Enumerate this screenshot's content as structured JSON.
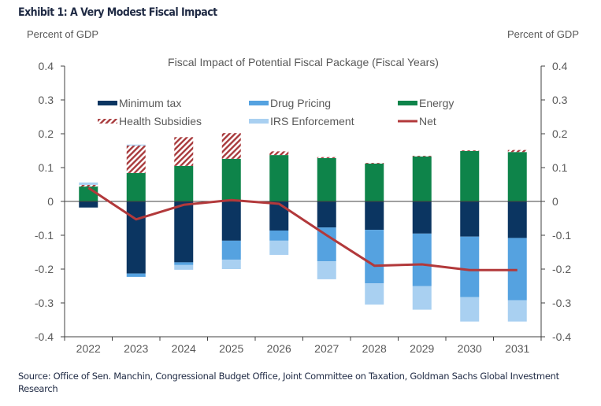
{
  "exhibit_title": "Exhibit 1: A Very Modest Fiscal Impact",
  "left_axis_label": "Percent of GDP",
  "right_axis_label": "Percent of GDP",
  "source": "Source: Office of Sen. Manchin, Congressional Budget Office, Joint Committee on Taxation, Goldman Sachs Global Investment Research",
  "chart_data": {
    "type": "bar",
    "stacked": true,
    "title": "Fiscal Impact of Potential Fiscal Package (Fiscal Years)",
    "xlabel": "",
    "ylabel": "Percent of GDP",
    "ylabel_right": "Percent of GDP",
    "ylim": [
      -0.4,
      0.4
    ],
    "yticks": [
      0.4,
      0.3,
      0.2,
      0.1,
      0,
      -0.1,
      -0.2,
      -0.3,
      -0.4
    ],
    "ytick_labels": [
      "0.4",
      "0.3",
      "0.2",
      "0.1",
      "0",
      "-0.1",
      "-0.2",
      "-0.3",
      "-0.4"
    ],
    "grid": false,
    "legend_position": "top",
    "categories": [
      "2022",
      "2023",
      "2024",
      "2025",
      "2026",
      "2027",
      "2028",
      "2029",
      "2030",
      "2031"
    ],
    "series": [
      {
        "name": "Minimum tax",
        "kind": "bar",
        "color": "#0b3561",
        "values": [
          -0.018,
          -0.213,
          -0.18,
          -0.116,
          -0.086,
          -0.077,
          -0.084,
          -0.095,
          -0.104,
          -0.108
        ]
      },
      {
        "name": "Drug Pricing",
        "kind": "bar",
        "color": "#55a2e0",
        "values": [
          0,
          -0.01,
          -0.008,
          -0.056,
          -0.03,
          -0.1,
          -0.158,
          -0.155,
          -0.179,
          -0.184
        ]
      },
      {
        "name": "Energy",
        "kind": "bar",
        "color": "#0e844a",
        "values": [
          0.044,
          0.084,
          0.105,
          0.126,
          0.137,
          0.128,
          0.112,
          0.133,
          0.149,
          0.146
        ]
      },
      {
        "name": "Health Subsidies",
        "kind": "bar",
        "color": "#a83a3c",
        "pattern": "hatch",
        "values": [
          0.005,
          0.081,
          0.085,
          0.076,
          0.011,
          0.003,
          0.002,
          0.002,
          0.002,
          0.006
        ]
      },
      {
        "name": "IRS Enforcement",
        "kind": "bar",
        "color": "#a9d0f1",
        "values": [
          0.007,
          0.003,
          -0.014,
          -0.028,
          -0.042,
          -0.053,
          -0.063,
          -0.07,
          -0.072,
          -0.063
        ]
      },
      {
        "name": "Net",
        "kind": "line",
        "color": "#b2393b",
        "values": [
          0.04,
          -0.053,
          -0.01,
          0.004,
          -0.007,
          -0.1,
          -0.19,
          -0.186,
          -0.203,
          -0.203
        ]
      }
    ],
    "legend": [
      {
        "name": "Minimum tax",
        "swatch": "bar",
        "color": "#0b3561"
      },
      {
        "name": "Drug Pricing",
        "swatch": "bar",
        "color": "#55a2e0"
      },
      {
        "name": "Energy",
        "swatch": "bar",
        "color": "#0e844a"
      },
      {
        "name": "Health Subsidies",
        "swatch": "hatch",
        "color": "#a83a3c"
      },
      {
        "name": "IRS Enforcement",
        "swatch": "bar",
        "color": "#a9d0f1"
      },
      {
        "name": "Net",
        "swatch": "line",
        "color": "#b2393b"
      }
    ]
  }
}
